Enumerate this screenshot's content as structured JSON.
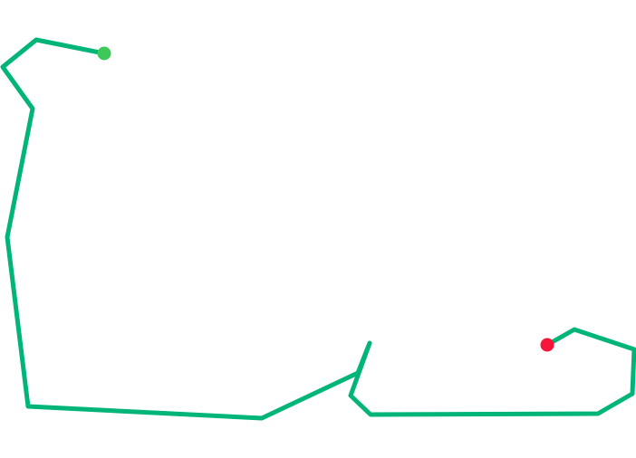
{
  "map": {
    "route_color": "#00b577",
    "start_marker": {
      "type": "start",
      "color": "#3cc95a"
    },
    "end_marker": {
      "type": "end",
      "color": "#f5163a"
    }
  }
}
